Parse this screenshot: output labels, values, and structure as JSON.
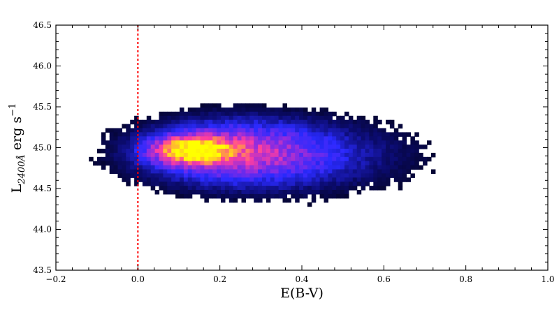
{
  "chart_data": {
    "type": "heatmap",
    "title": "",
    "xlabel": "E(B-V)",
    "ylabel": "L",
    "ylabel_subscript": "2400Å",
    "ylabel_unit": "erg s",
    "ylabel_superscript": "−1",
    "xlim": [
      -0.2,
      1.0
    ],
    "ylim": [
      43.5,
      46.5
    ],
    "x_ticks": [
      -0.2,
      0.0,
      0.2,
      0.4,
      0.6,
      0.8,
      1.0
    ],
    "x_tick_labels": [
      "−0.2",
      "0.0",
      "0.2",
      "0.4",
      "0.6",
      "0.8",
      "1.0"
    ],
    "y_ticks": [
      43.5,
      44.0,
      44.5,
      45.0,
      45.5,
      46.0,
      46.5
    ],
    "y_tick_labels": [
      "43.5",
      "44.0",
      "44.5",
      "45.0",
      "45.5",
      "46.0",
      "46.5"
    ],
    "colormap": [
      "#000000",
      "#0b0b6e",
      "#2a2aff",
      "#8a2be2",
      "#ff3da0",
      "#ffa040",
      "#ffff00"
    ],
    "density_peak": {
      "x": 0.13,
      "y": 44.97
    },
    "reference_line": {
      "x": 0.0,
      "color": "#ff0000",
      "style": "dashed"
    },
    "grid": false,
    "legend": "none"
  }
}
